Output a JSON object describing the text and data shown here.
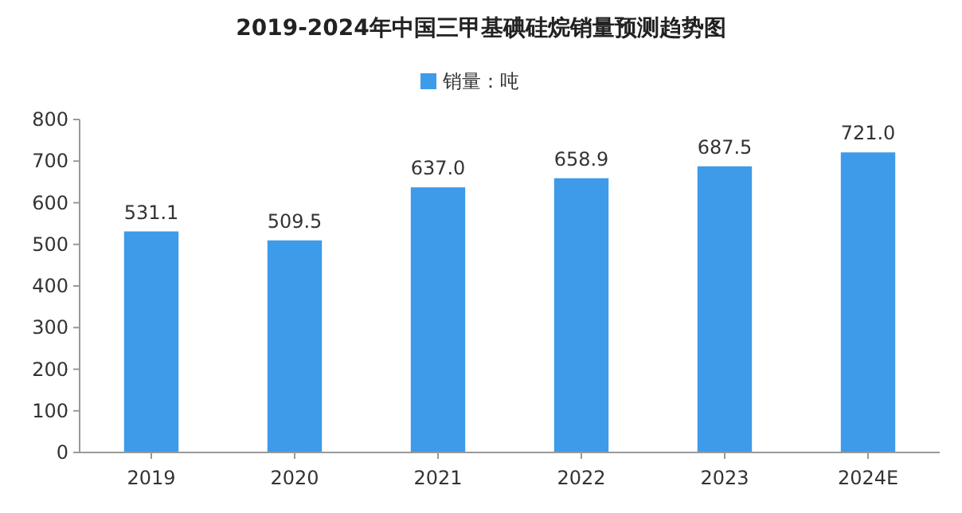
{
  "chart_data": {
    "type": "bar",
    "title": "2019-2024年中国三甲基碘硅烷销量预测趋势图",
    "categories": [
      "2019",
      "2020",
      "2021",
      "2022",
      "2023",
      "2024E"
    ],
    "series": [
      {
        "name": "销量：吨",
        "color": "#3d9be9",
        "values": [
          531.1,
          509.5,
          637.0,
          658.9,
          687.5,
          721.0
        ]
      }
    ],
    "value_labels": [
      "531.1",
      "509.5",
      "637.0",
      "658.9",
      "687.5",
      "721.0"
    ],
    "ylim": [
      0,
      800
    ],
    "yticks": [
      0,
      100,
      200,
      300,
      400,
      500,
      600,
      700,
      800
    ],
    "grid": false,
    "legend": "top"
  }
}
